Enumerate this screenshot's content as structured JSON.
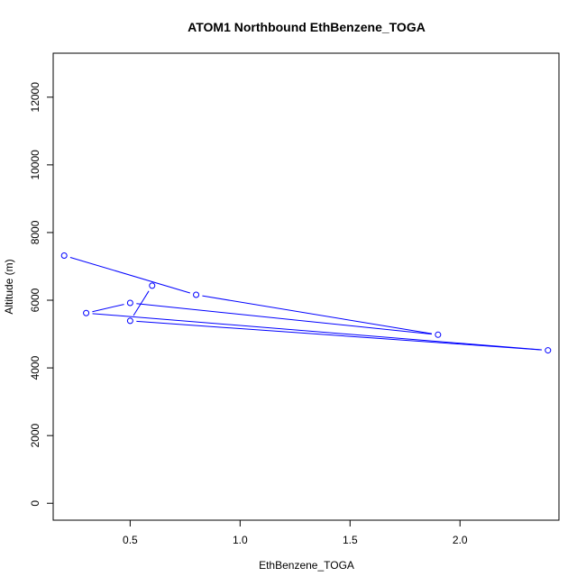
{
  "chart_data": {
    "type": "line",
    "title": "ATOM1 Northbound EthBenzene_TOGA",
    "xlabel": "EthBenzene_TOGA",
    "ylabel": "Altitude (m)",
    "xlim": [
      0.15,
      2.45
    ],
    "ylim": [
      -500,
      13300
    ],
    "xticks": [
      0.5,
      1.0,
      1.5,
      2.0
    ],
    "xtick_labels": [
      "0.5",
      "1.0",
      "1.5",
      "2.0"
    ],
    "yticks": [
      0,
      2000,
      4000,
      6000,
      8000,
      10000,
      12000
    ],
    "ytick_labels": [
      "0",
      "2000",
      "4000",
      "6000",
      "8000",
      "10000",
      "12000"
    ],
    "grid": false,
    "series": [
      {
        "color": "#0000ff",
        "marker": "open-circle",
        "x": [
          0.2,
          0.8,
          1.9,
          0.5,
          0.3,
          2.4,
          0.5,
          0.6
        ],
        "y": [
          7320,
          6160,
          4980,
          5920,
          5620,
          4520,
          5390,
          6430
        ]
      }
    ]
  }
}
